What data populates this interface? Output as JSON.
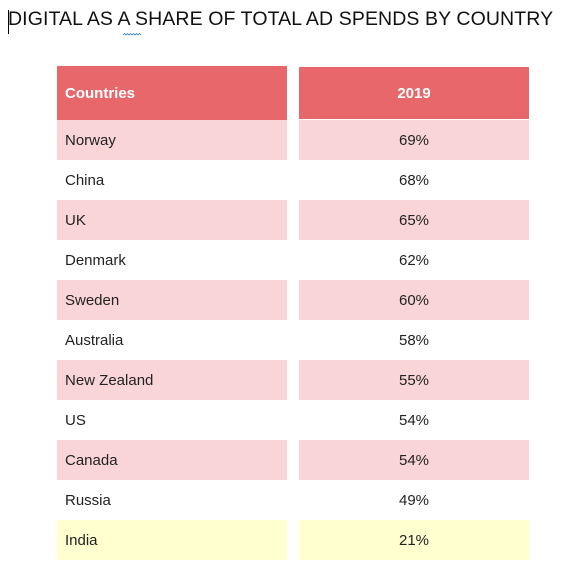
{
  "title": "DIGITAL AS A SHARE OF TOTAL AD SPENDS BY COUNTRY",
  "colors": {
    "header": "#e8676b",
    "row_shade": "#f9d5d7",
    "highlight": "#ffffd0"
  },
  "table": {
    "headers": [
      "Countries",
      "2019"
    ],
    "rows": [
      {
        "country": "Norway",
        "value": "69%"
      },
      {
        "country": "China",
        "value": "68%"
      },
      {
        "country": "UK",
        "value": "65%"
      },
      {
        "country": "Denmark",
        "value": "62%"
      },
      {
        "country": "Sweden",
        "value": "60%"
      },
      {
        "country": "Australia",
        "value": "58%"
      },
      {
        "country": "New Zealand",
        "value": "55%"
      },
      {
        "country": "US",
        "value": "54%"
      },
      {
        "country": "Canada",
        "value": "54%"
      },
      {
        "country": "Russia",
        "value": "49%"
      },
      {
        "country": "India",
        "value": "21%"
      }
    ]
  }
}
